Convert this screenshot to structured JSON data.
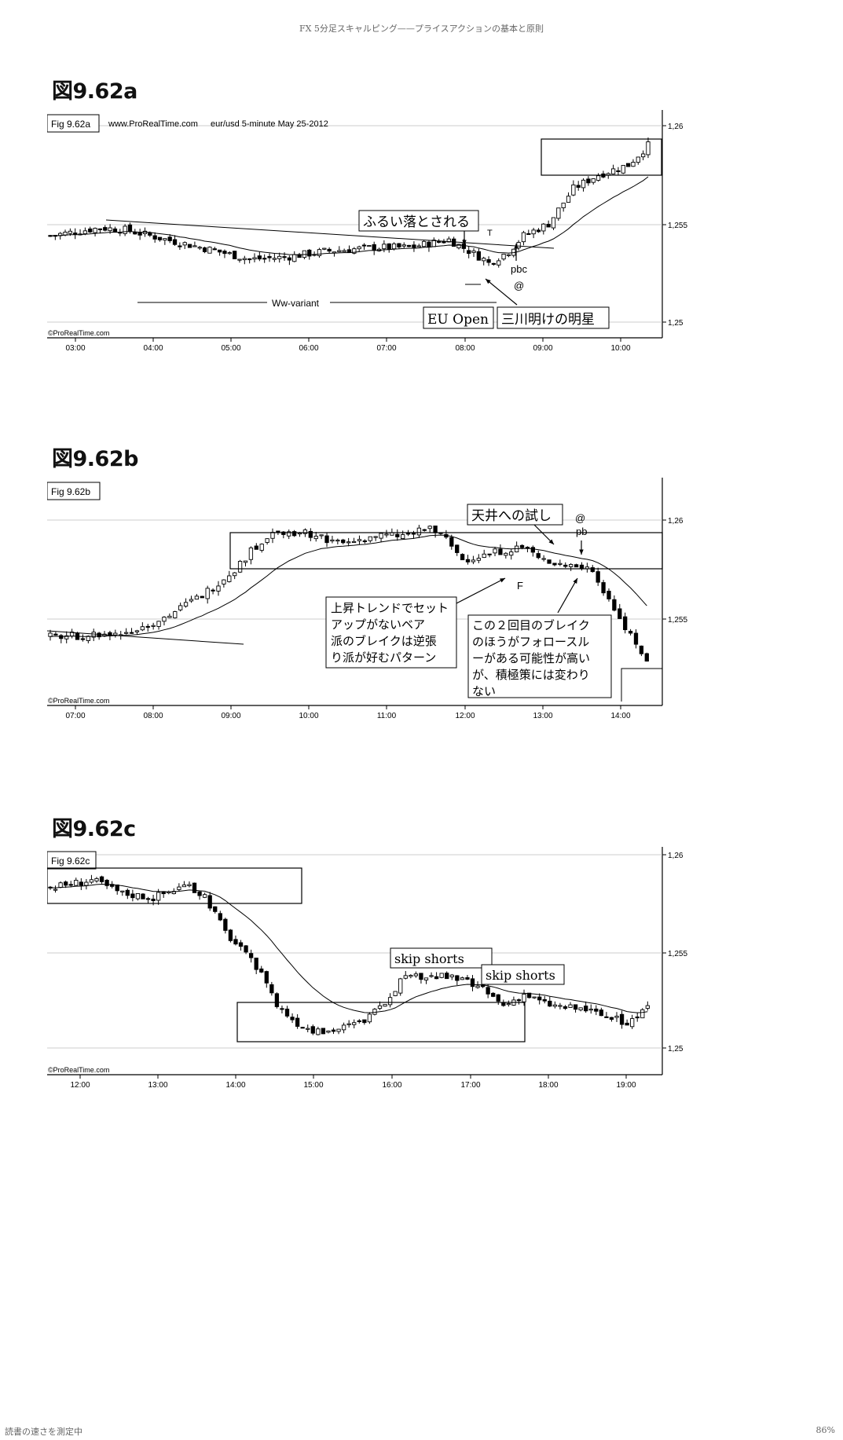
{
  "header": "FX 5分足スキャルピング——プライスアクションの基本と原則",
  "footer": {
    "left": "読書の速さを測定中",
    "right": "86%"
  },
  "figures": [
    {
      "title": "図9.62a",
      "fig_label": "Fig 9.62a",
      "source": "www.ProRealTime.com",
      "info": "eur/usd  5-minute  May 25-2012",
      "copyright": "©ProRealTime.com",
      "y_labels": [
        "1,26",
        "1,255",
        "1,25"
      ],
      "x_labels": [
        "03:00",
        "04:00",
        "05:00",
        "06:00",
        "07:00",
        "08:00",
        "09:00",
        "10:00"
      ],
      "annotations": {
        "shakeout": "ふるい落とされる",
        "ww": "Ww-variant",
        "eu_open": "EU Open",
        "morning_star": "三川明けの明星",
        "pbc": "pbc",
        "at": "@",
        "t": "T"
      }
    },
    {
      "title": "図9.62b",
      "fig_label": "Fig 9.62b",
      "copyright": "©ProRealTime.com",
      "y_labels": [
        "1,26",
        "1,255"
      ],
      "x_labels": [
        "07:00",
        "08:00",
        "09:00",
        "10:00",
        "11:00",
        "12:00",
        "13:00",
        "14:00"
      ],
      "annotations": {
        "ceiling_test": "天井への試し",
        "at": "@",
        "pb": "pb",
        "f": "F",
        "note1": [
          "上昇トレンドでセット",
          "アップがないベア",
          "派のブレイクは逆張",
          "り派が好むパターン"
        ],
        "note2": [
          "この２回目のブレイク",
          "のほうがフォロースル",
          "ーがある可能性が高い",
          "が、積極策には変わり",
          "ない"
        ]
      }
    },
    {
      "title": "図9.62c",
      "fig_label": "Fig 9.62c",
      "copyright": "©ProRealTime.com",
      "y_labels": [
        "1,26",
        "1,255",
        "1,25"
      ],
      "x_labels": [
        "12:00",
        "13:00",
        "14:00",
        "15:00",
        "16:00",
        "17:00",
        "18:00",
        "19:00"
      ],
      "annotations": {
        "skip1": "skip shorts",
        "skip2": "skip shorts"
      }
    }
  ],
  "chart_data": [
    {
      "type": "candlestick",
      "title": "Fig 9.62a",
      "instrument": "eur/usd",
      "timeframe": "5-minute",
      "date": "May 25-2012",
      "x_range": [
        "03:00",
        "10:00"
      ],
      "ylim": [
        1.25,
        1.26
      ],
      "close_path": [
        [
          0,
          1.2544
        ],
        [
          10,
          1.2548
        ],
        [
          15,
          1.2547
        ],
        [
          25,
          1.2541
        ],
        [
          32,
          1.2537
        ],
        [
          40,
          1.2532
        ],
        [
          47,
          1.2533
        ],
        [
          55,
          1.2536
        ],
        [
          65,
          1.2538
        ],
        [
          72,
          1.2538
        ],
        [
          80,
          1.2542
        ],
        [
          87,
          1.2532
        ],
        [
          88,
          1.253
        ],
        [
          92,
          1.2536
        ],
        [
          95,
          1.2544
        ],
        [
          100,
          1.255
        ],
        [
          105,
          1.2568
        ],
        [
          110,
          1.2575
        ],
        [
          116,
          1.258
        ],
        [
          120,
          1.259
        ]
      ]
    },
    {
      "type": "candlestick",
      "title": "Fig 9.62b",
      "x_range": [
        "07:00",
        "14:00"
      ],
      "ylim": [
        1.25,
        1.26
      ],
      "close_path": [
        [
          0,
          1.2541
        ],
        [
          8,
          1.2542
        ],
        [
          12,
          1.2542
        ],
        [
          16,
          1.2545
        ],
        [
          22,
          1.2552
        ],
        [
          28,
          1.2562
        ],
        [
          34,
          1.2575
        ],
        [
          38,
          1.2587
        ],
        [
          42,
          1.2595
        ],
        [
          48,
          1.2593
        ],
        [
          54,
          1.2588
        ],
        [
          60,
          1.2592
        ],
        [
          66,
          1.2592
        ],
        [
          70,
          1.2596
        ],
        [
          73,
          1.259
        ],
        [
          76,
          1.258
        ],
        [
          80,
          1.2582
        ],
        [
          84,
          1.2585
        ],
        [
          88,
          1.2586
        ],
        [
          90,
          1.258
        ],
        [
          94,
          1.2578
        ],
        [
          100,
          1.2575
        ],
        [
          104,
          1.2555
        ],
        [
          108,
          1.2538
        ],
        [
          110,
          1.2528
        ]
      ]
    },
    {
      "type": "candlestick",
      "title": "Fig 9.62c",
      "x_range": [
        "12:00",
        "19:00"
      ],
      "ylim": [
        1.25,
        1.26
      ],
      "close_path": [
        [
          0,
          1.2583
        ],
        [
          8,
          1.2587
        ],
        [
          14,
          1.258
        ],
        [
          20,
          1.2578
        ],
        [
          26,
          1.2584
        ],
        [
          30,
          1.2579
        ],
        [
          34,
          1.256
        ],
        [
          38,
          1.2548
        ],
        [
          42,
          1.2535
        ],
        [
          44,
          1.2522
        ],
        [
          48,
          1.2513
        ],
        [
          52,
          1.2508
        ],
        [
          56,
          1.251
        ],
        [
          60,
          1.2513
        ],
        [
          64,
          1.252
        ],
        [
          68,
          1.2535
        ],
        [
          72,
          1.2537
        ],
        [
          76,
          1.2537
        ],
        [
          80,
          1.2535
        ],
        [
          84,
          1.253
        ],
        [
          88,
          1.2522
        ],
        [
          92,
          1.2528
        ],
        [
          96,
          1.2523
        ],
        [
          100,
          1.2521
        ],
        [
          104,
          1.252
        ],
        [
          108,
          1.2516
        ],
        [
          112,
          1.2513
        ],
        [
          116,
          1.252
        ]
      ]
    }
  ]
}
